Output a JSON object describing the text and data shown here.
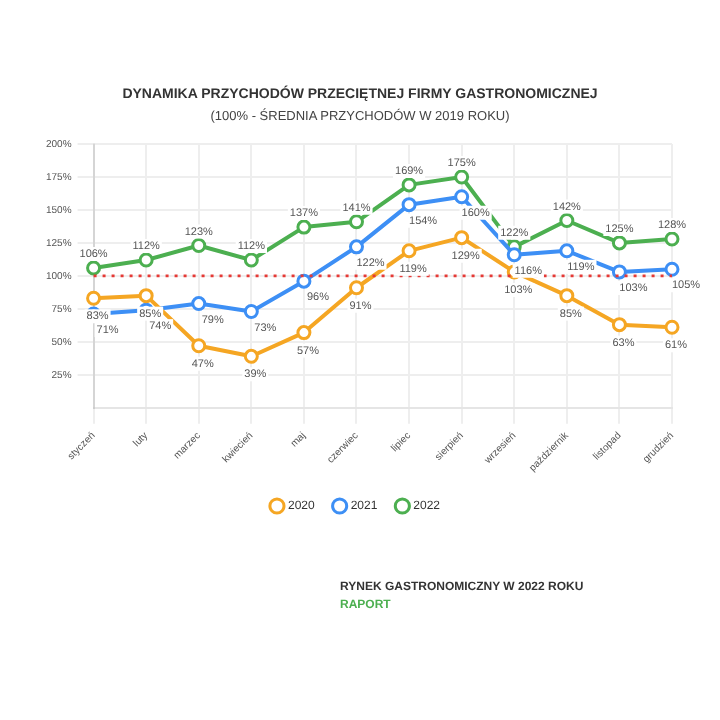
{
  "chart_data": {
    "type": "line",
    "title": "DYNAMIKA PRZYCHODÓW PRZECIĘTNEJ FIRMY GASTRONOMICZNEJ",
    "subtitle": "(100% - ŚREDNIA PRZYCHODÓW W 2019 ROKU)",
    "categories": [
      "styczeń",
      "luty",
      "marzec",
      "kwiecień",
      "maj",
      "czerwiec",
      "lipiec",
      "sierpień",
      "wrzesień",
      "październik",
      "listopad",
      "grudzień"
    ],
    "series": [
      {
        "name": "2020",
        "color": "#f5a623",
        "values": [
          83,
          85,
          47,
          39,
          57,
          91,
          119,
          129,
          103,
          85,
          63,
          61
        ],
        "value_labels": [
          "83%",
          "85%",
          "47%",
          "39%",
          "57%",
          "91%",
          "119%",
          "129%",
          "103%",
          "85%",
          "63%",
          "61%"
        ]
      },
      {
        "name": "2021",
        "color": "#3d8ff5",
        "values": [
          71,
          74,
          79,
          73,
          96,
          122,
          154,
          160,
          116,
          119,
          103,
          105
        ],
        "value_labels": [
          "71%",
          "74%",
          "79%",
          "73%",
          "96%",
          "122%",
          "154%",
          "160%",
          "116%",
          "119%",
          "103%",
          "105%"
        ]
      },
      {
        "name": "2022",
        "color": "#4caf50",
        "values": [
          106,
          112,
          123,
          112,
          137,
          141,
          169,
          175,
          122,
          142,
          125,
          128
        ],
        "value_labels": [
          "106%",
          "112%",
          "123%",
          "112%",
          "137%",
          "141%",
          "169%",
          "175%",
          "122%",
          "142%",
          "125%",
          "128%"
        ]
      }
    ],
    "ylim": [
      0,
      200
    ],
    "yticks": [
      {
        "value": 25,
        "label": "25%"
      },
      {
        "value": 50,
        "label": "50%"
      },
      {
        "value": 75,
        "label": "75%"
      },
      {
        "value": 100,
        "label": "100%"
      },
      {
        "value": 125,
        "label": "125%"
      },
      {
        "value": 150,
        "label": "150%"
      },
      {
        "value": 175,
        "label": "175%"
      },
      {
        "value": 200,
        "label": "200%"
      }
    ],
    "ref_lines": [
      {
        "axis": "y",
        "value": 100,
        "color": "#e53935",
        "line_style": "dotted"
      }
    ],
    "grid": true,
    "legend": "bottom",
    "marker": "circle",
    "line_style": "solid",
    "annotations": [
      "RYNEK GASTRONOMICZNY W 2022 ROKU",
      "RAPORT"
    ]
  }
}
